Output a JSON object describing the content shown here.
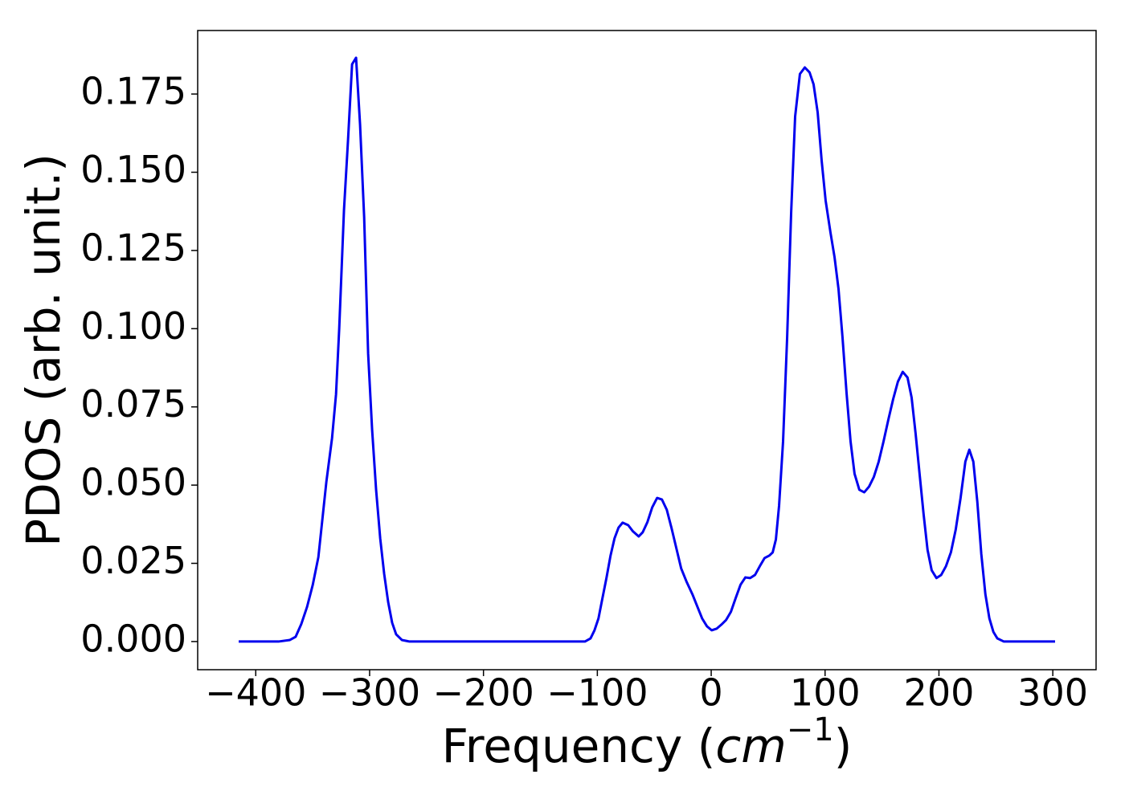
{
  "chart_data": {
    "type": "line",
    "xlabel_parts": [
      "Frequency (",
      "cm",
      "−1",
      ")"
    ],
    "ylabel": "PDOS (arb. unit.)",
    "xlim": [
      -451,
      338
    ],
    "ylim": [
      -0.009,
      0.1953
    ],
    "xticks": [
      {
        "value": -400,
        "label": "−400"
      },
      {
        "value": -300,
        "label": "−300"
      },
      {
        "value": -200,
        "label": "−200"
      },
      {
        "value": -100,
        "label": "−100"
      },
      0,
      100,
      200,
      300
    ],
    "yticks": [
      {
        "value": 0,
        "label": "0.000"
      },
      {
        "value": 0.025,
        "label": "0.025"
      },
      {
        "value": 0.05,
        "label": "0.050"
      },
      {
        "value": 0.075,
        "label": "0.075"
      },
      {
        "value": 0.1,
        "label": "0.100"
      },
      {
        "value": 0.125,
        "label": "0.125"
      },
      {
        "value": 0.15,
        "label": "0.150"
      },
      {
        "value": 0.175,
        "label": "0.175"
      }
    ],
    "grid": false,
    "series": [
      {
        "color": "#0000ee",
        "x": [
          -415,
          -380,
          -370,
          -365,
          -360,
          -355,
          -350,
          -345,
          -338,
          -333,
          -329.5,
          -326.7,
          -322.5,
          -319,
          -315.4,
          -311.9,
          -308.4,
          -304.8,
          -301.3,
          -297.8,
          -294.3,
          -290.7,
          -287.2,
          -283.7,
          -280.2,
          -276.7,
          -271.7,
          -265,
          -110.9,
          -106,
          -102.5,
          -99,
          -95.5,
          -92,
          -88.4,
          -84.9,
          -81.4,
          -77.8,
          -72.9,
          -68.7,
          -63.7,
          -60.2,
          -56,
          -51.8,
          -47.5,
          -43.3,
          -39,
          -34.8,
          -30.6,
          -26.4,
          -21.5,
          -16.5,
          -12.3,
          -8,
          -3.8,
          0.4,
          4.7,
          8.9,
          13.1,
          17.3,
          21.5,
          25.8,
          30,
          34.2,
          38.5,
          42.7,
          46.9,
          51.1,
          54,
          56.8,
          59.6,
          63.1,
          66.7,
          70.2,
          73.7,
          77.9,
          82.2,
          86.4,
          89.9,
          93.5,
          97,
          100.5,
          104.8,
          108.3,
          111.8,
          115.3,
          118.9,
          122.4,
          125.9,
          130.1,
          134.4,
          138.6,
          142.8,
          147.1,
          151.3,
          155.5,
          159.8,
          164,
          168.2,
          172.4,
          176,
          179.5,
          183,
          186.5,
          190,
          193.6,
          197.8,
          202,
          206.2,
          210.5,
          214.7,
          219,
          223.2,
          226.7,
          230.2,
          233.7,
          237.2,
          240.8,
          244.3,
          247.8,
          251.3,
          257,
          302
        ],
        "values": [
          0,
          0,
          0.0005,
          0.0015,
          0.0056,
          0.011,
          0.018,
          0.027,
          0.051,
          0.065,
          0.079,
          0.1,
          0.138,
          0.16,
          0.1845,
          0.1866,
          0.1653,
          0.1357,
          0.092,
          0.0677,
          0.0485,
          0.033,
          0.0216,
          0.0126,
          0.006,
          0.0023,
          0.0005,
          0,
          0,
          0.001,
          0.0036,
          0.0074,
          0.0139,
          0.0203,
          0.0275,
          0.033,
          0.0364,
          0.038,
          0.0372,
          0.0352,
          0.0336,
          0.0349,
          0.0382,
          0.0429,
          0.0459,
          0.0454,
          0.0421,
          0.0362,
          0.0298,
          0.0234,
          0.019,
          0.0151,
          0.0113,
          0.0074,
          0.0049,
          0.0036,
          0.0041,
          0.0054,
          0.0069,
          0.0095,
          0.0139,
          0.0182,
          0.0205,
          0.0203,
          0.0213,
          0.0241,
          0.0267,
          0.0275,
          0.0285,
          0.0326,
          0.0434,
          0.0639,
          0.0973,
          0.137,
          0.1678,
          0.1814,
          0.1835,
          0.1819,
          0.1781,
          0.1691,
          0.1537,
          0.1409,
          0.1306,
          0.1229,
          0.1127,
          0.0973,
          0.0793,
          0.0639,
          0.0536,
          0.0485,
          0.0477,
          0.0495,
          0.0526,
          0.0575,
          0.0639,
          0.0708,
          0.0775,
          0.0831,
          0.0862,
          0.0844,
          0.078,
          0.0665,
          0.0536,
          0.0408,
          0.0293,
          0.0228,
          0.0203,
          0.0213,
          0.0241,
          0.0285,
          0.0357,
          0.0459,
          0.0575,
          0.0613,
          0.0575,
          0.0447,
          0.028,
          0.0151,
          0.0074,
          0.0031,
          0.001,
          0,
          0
        ]
      }
    ]
  }
}
